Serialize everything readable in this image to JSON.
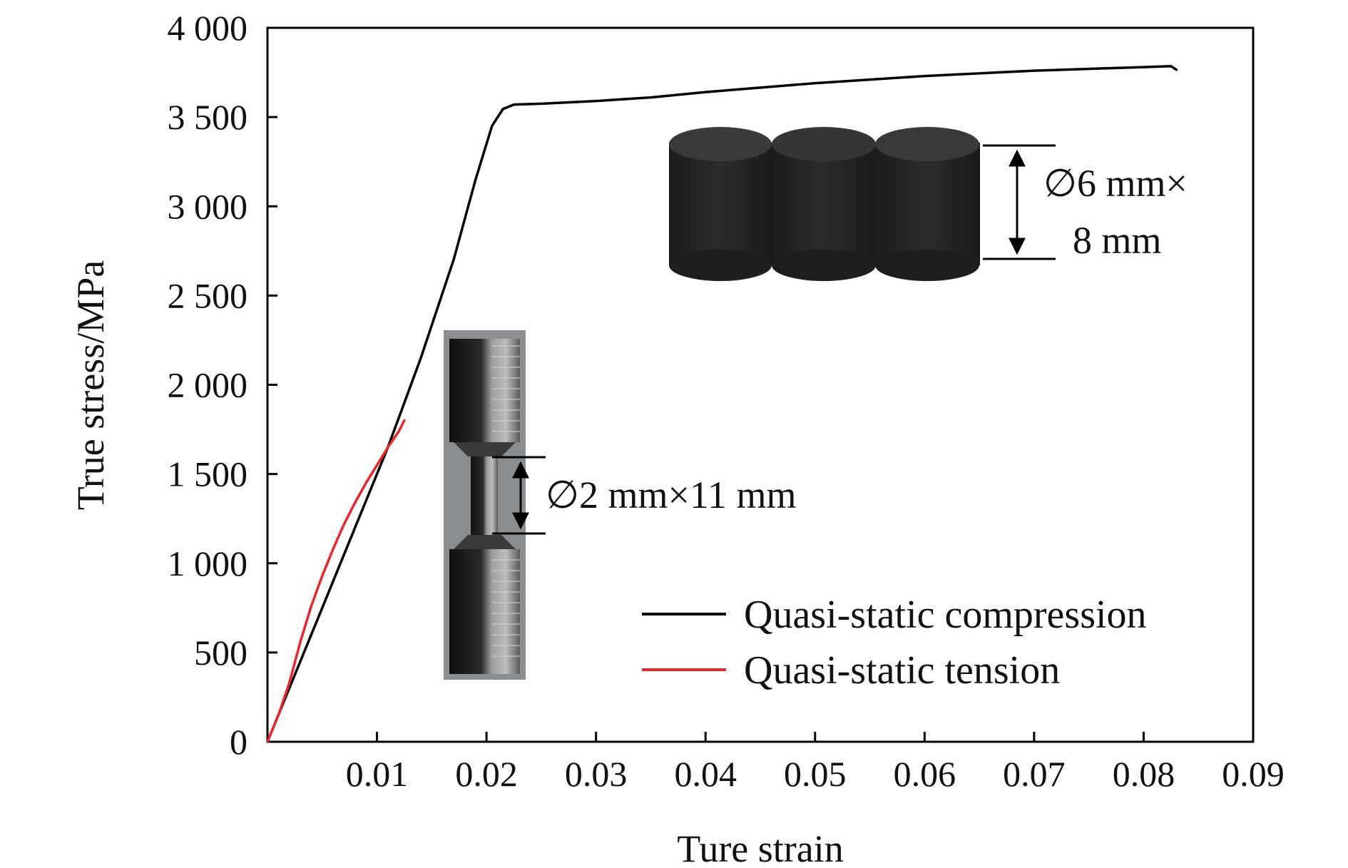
{
  "chart_data": {
    "type": "line",
    "xlabel": "Ture strain",
    "ylabel": "True stress/MPa",
    "xlim": [
      0,
      0.09
    ],
    "ylim": [
      0,
      4000
    ],
    "x_ticks": [
      {
        "value": 0.01,
        "label": "0.01"
      },
      {
        "value": 0.02,
        "label": "0.02"
      },
      {
        "value": 0.03,
        "label": "0.03"
      },
      {
        "value": 0.04,
        "label": "0.04"
      },
      {
        "value": 0.05,
        "label": "0.05"
      },
      {
        "value": 0.06,
        "label": "0.06"
      },
      {
        "value": 0.07,
        "label": "0.07"
      },
      {
        "value": 0.08,
        "label": "0.08"
      },
      {
        "value": 0.09,
        "label": "0.09"
      }
    ],
    "y_ticks": [
      {
        "value": 0,
        "label": "0"
      },
      {
        "value": 500,
        "label": "500"
      },
      {
        "value": 1000,
        "label": "1 000"
      },
      {
        "value": 1500,
        "label": "1 500"
      },
      {
        "value": 2000,
        "label": "2 000"
      },
      {
        "value": 2500,
        "label": "2 500"
      },
      {
        "value": 3000,
        "label": "3 000"
      },
      {
        "value": 3500,
        "label": "3 500"
      },
      {
        "value": 4000,
        "label": "4 000"
      }
    ],
    "grid": false,
    "legend_position": "bottom-right",
    "series": [
      {
        "name": "Quasi-static compression",
        "color": "#000000",
        "points": [
          [
            0,
            0
          ],
          [
            0.002,
            300
          ],
          [
            0.005,
            750
          ],
          [
            0.008,
            1200
          ],
          [
            0.011,
            1650
          ],
          [
            0.014,
            2150
          ],
          [
            0.017,
            2700
          ],
          [
            0.019,
            3150
          ],
          [
            0.0205,
            3450
          ],
          [
            0.0215,
            3545
          ],
          [
            0.0225,
            3570
          ],
          [
            0.025,
            3575
          ],
          [
            0.03,
            3590
          ],
          [
            0.035,
            3610
          ],
          [
            0.04,
            3640
          ],
          [
            0.05,
            3690
          ],
          [
            0.06,
            3730
          ],
          [
            0.07,
            3760
          ],
          [
            0.08,
            3780
          ],
          [
            0.0825,
            3785
          ],
          [
            0.083,
            3765
          ]
        ]
      },
      {
        "name": "Quasi-static tension",
        "color": "#e8262b",
        "points": [
          [
            0,
            0
          ],
          [
            0.001,
            150
          ],
          [
            0.002,
            330
          ],
          [
            0.003,
            560
          ],
          [
            0.004,
            760
          ],
          [
            0.005,
            930
          ],
          [
            0.006,
            1080
          ],
          [
            0.007,
            1220
          ],
          [
            0.008,
            1340
          ],
          [
            0.009,
            1450
          ],
          [
            0.01,
            1550
          ],
          [
            0.011,
            1650
          ],
          [
            0.012,
            1740
          ],
          [
            0.0125,
            1800
          ]
        ]
      }
    ],
    "annotations": {
      "compression_specimen": {
        "label_line1": "∅6 mm×",
        "label_line2": "8 mm"
      },
      "tension_specimen": {
        "label": "∅2 mm×11 mm"
      }
    }
  }
}
